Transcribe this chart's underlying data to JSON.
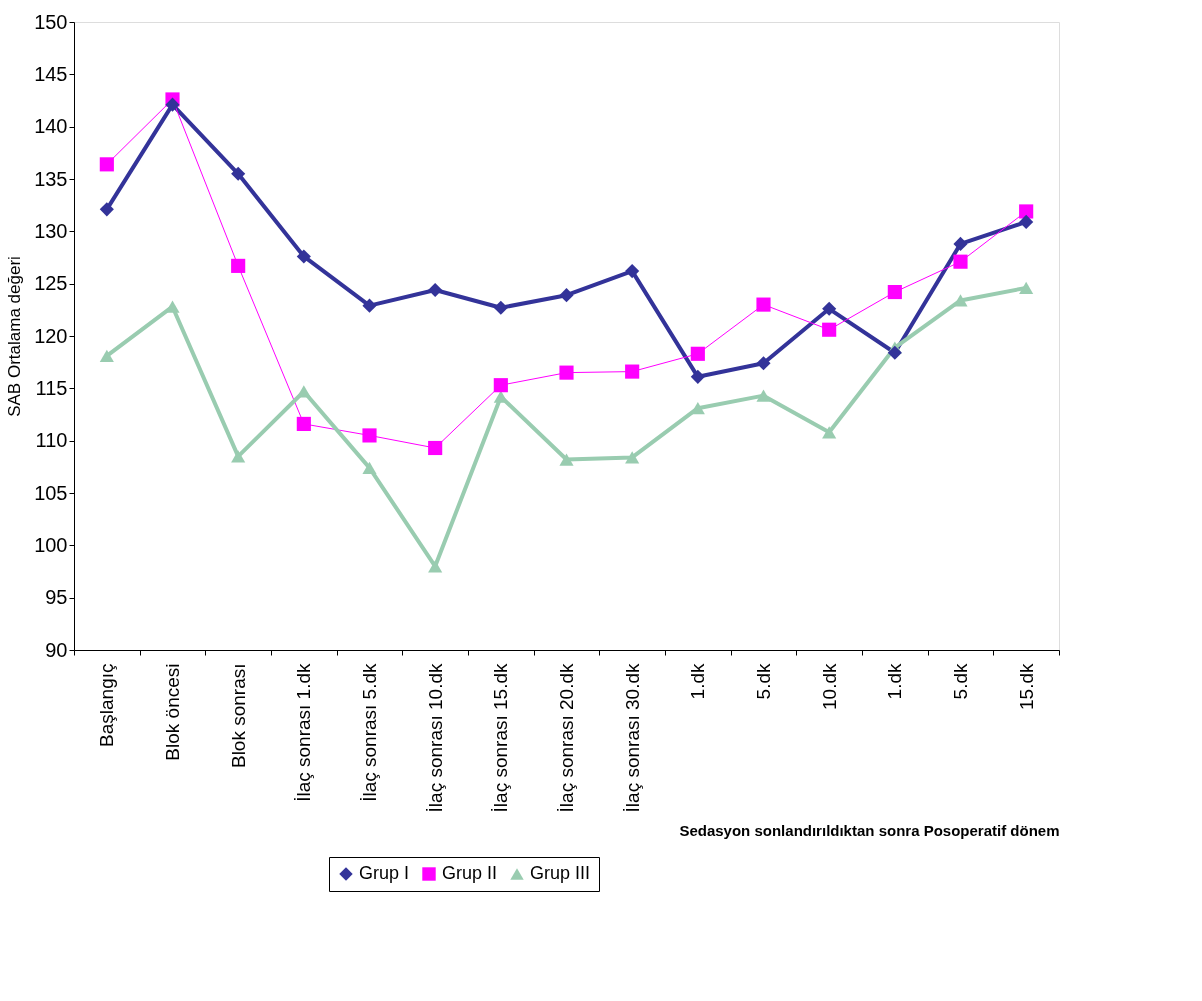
{
  "chart_data": {
    "type": "line",
    "ylabel": "SAB Ortalama değeri",
    "xlabel": "Sedasyon sonlandırıldıktan sonra  Posoperatif dönem",
    "categories": [
      "Başlangıç",
      "Blok öncesi",
      "Blok sonrası",
      "İlaç sonrası 1.dk",
      "İlaç sonrası 5.dk",
      "İlaç sonrası 10.dk",
      "İlaç sonrası 15.dk",
      "İlaç sonrası 20.dk",
      "İlaç sonrası 30.dk",
      "1.dk",
      "5.dk",
      "10.dk",
      "1.dk",
      "5.dk",
      "15.dk"
    ],
    "ylim": [
      90,
      150
    ],
    "yticks": [
      90,
      95,
      100,
      105,
      110,
      115,
      120,
      125,
      130,
      135,
      140,
      145,
      150
    ],
    "grid": false,
    "legend": "bottom",
    "series": [
      {
        "name": "Grup I",
        "color": "#333399",
        "marker": "diamond",
        "values": [
          132.1,
          142.1,
          135.5,
          127.6,
          122.9,
          124.4,
          122.7,
          123.9,
          126.2,
          116.1,
          117.4,
          122.6,
          118.4,
          128.8,
          130.9
        ]
      },
      {
        "name": "Grup II",
        "color": "#ff00ff",
        "marker": "square",
        "values": [
          136.4,
          142.6,
          126.7,
          111.6,
          110.5,
          109.3,
          115.3,
          116.5,
          116.6,
          118.3,
          123.0,
          120.6,
          124.2,
          127.1,
          131.9
        ]
      },
      {
        "name": "Grup III",
        "color": "#99ccb0",
        "marker": "triangle",
        "values": [
          118.1,
          122.8,
          108.5,
          114.7,
          107.4,
          98.0,
          114.2,
          108.2,
          108.4,
          113.1,
          114.3,
          110.8,
          118.9,
          123.4,
          124.6
        ]
      }
    ]
  }
}
